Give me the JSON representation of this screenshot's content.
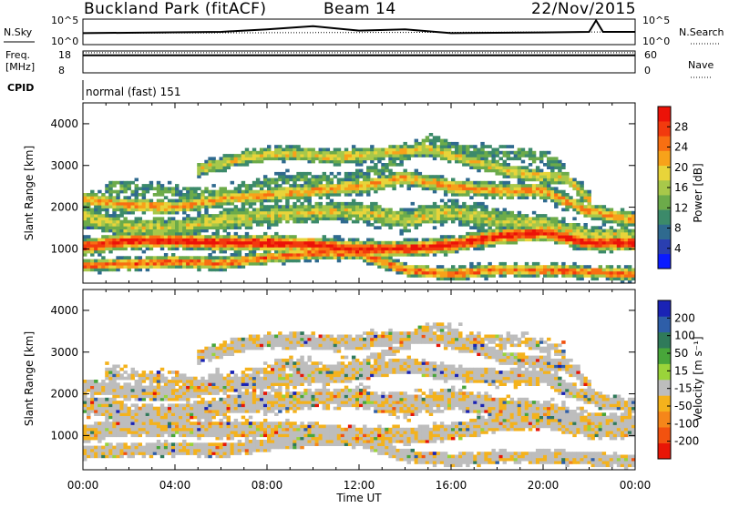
{
  "header": {
    "station": "Buckland Park (fitACF)",
    "beam": "Beam 14",
    "date": "22/Nov/2015"
  },
  "strips": {
    "nsky_label": "N.Sky",
    "nsky_tick_top": "10^5",
    "nsky_tick_bottom": "10^0",
    "nsearch_label": "N.Search",
    "nsearch_tick_top": "10^5",
    "nsearch_tick_bottom": "10^0",
    "freq_label_1": "Freq.",
    "freq_label_2": "[MHz]",
    "freq_tick_top": "18",
    "freq_tick_bottom": "8",
    "nave_label": "Nave",
    "nave_tick_top": "60",
    "nave_tick_bottom": "0",
    "cpid_label": "CPID",
    "cpid_value": "normal (fast) 151"
  },
  "chart_data": [
    {
      "type": "heatmap",
      "name": "power-panel",
      "ylabel": "Slant Range [km]",
      "xlabel": "",
      "x_range_hours": [
        0,
        24
      ],
      "ylim": [
        180,
        4500
      ],
      "yticks": [
        "1000",
        "2000",
        "3000",
        "4000"
      ],
      "colorbar": {
        "label": "Power [dB]",
        "ticks": [
          "4",
          "8",
          "12",
          "16",
          "20",
          "24",
          "28"
        ],
        "colors": [
          "#0a1bff",
          "#2a3fb0",
          "#2f6a8f",
          "#3c8a6a",
          "#6cab4a",
          "#a8c84a",
          "#e8d43a",
          "#f7a21a",
          "#f86f12",
          "#f23a0e",
          "#ec1208"
        ]
      },
      "bands": [
        {
          "level": 0.95,
          "points": [
            [
              0,
              1050
            ],
            [
              2,
              1200
            ],
            [
              4,
              1200
            ],
            [
              6,
              1150
            ],
            [
              8,
              1150
            ],
            [
              10,
              1100
            ],
            [
              12,
              1000
            ],
            [
              14,
              1000
            ],
            [
              16,
              1100
            ],
            [
              18,
              1300
            ],
            [
              20,
              1400
            ],
            [
              22,
              1150
            ],
            [
              24,
              1150
            ]
          ],
          "width": 200
        },
        {
          "level": 0.8,
          "points": [
            [
              0,
              600
            ],
            [
              2,
              650
            ],
            [
              4,
              700
            ],
            [
              6,
              650
            ],
            [
              8,
              800
            ],
            [
              10,
              900
            ],
            [
              12,
              900
            ],
            [
              13,
              700
            ],
            [
              14,
              500
            ],
            [
              16,
              400
            ],
            [
              18,
              500
            ],
            [
              20,
              500
            ],
            [
              22,
              450
            ],
            [
              24,
              400
            ]
          ],
          "width": 160
        },
        {
          "level": 0.7,
          "points": [
            [
              0,
              2200
            ],
            [
              2,
              2050
            ],
            [
              4,
              2000
            ],
            [
              6,
              2200
            ],
            [
              8,
              2300
            ],
            [
              10,
              2400
            ],
            [
              12,
              2500
            ],
            [
              14,
              2700
            ],
            [
              16,
              2500
            ],
            [
              18,
              2400
            ],
            [
              20,
              2400
            ],
            [
              22,
              1900
            ],
            [
              24,
              1700
            ]
          ],
          "width": 200
        },
        {
          "level": 0.55,
          "points": [
            [
              0,
              1800
            ],
            [
              2,
              1500
            ],
            [
              4,
              1500
            ],
            [
              6,
              1700
            ],
            [
              8,
              1800
            ],
            [
              10,
              1900
            ],
            [
              12,
              1900
            ],
            [
              14,
              1700
            ],
            [
              16,
              1900
            ],
            [
              18,
              1700
            ],
            [
              20,
              1600
            ],
            [
              22,
              1300
            ],
            [
              24,
              1300
            ]
          ],
          "width": 300
        },
        {
          "level": 0.6,
          "points": [
            [
              5,
              2900
            ],
            [
              7,
              3200
            ],
            [
              9,
              3300
            ],
            [
              11,
              3200
            ],
            [
              13,
              3300
            ],
            [
              15,
              3400
            ],
            [
              17,
              3100
            ],
            [
              19,
              2800
            ],
            [
              21,
              2700
            ],
            [
              22,
              2200
            ]
          ],
          "width": 200
        },
        {
          "level": 0.35,
          "points": [
            [
              1,
              2500
            ],
            [
              3,
              2400
            ],
            [
              5,
              2300
            ],
            [
              7,
              2400
            ],
            [
              9,
              2700
            ],
            [
              11,
              2600
            ],
            [
              13,
              2900
            ],
            [
              15,
              3600
            ],
            [
              17,
              3300
            ],
            [
              19,
              3300
            ],
            [
              21,
              3000
            ]
          ],
          "width": 260
        }
      ]
    },
    {
      "type": "heatmap",
      "name": "velocity-panel",
      "ylabel": "Slant Range [km]",
      "xlabel": "Time UT",
      "x_range_hours": [
        0,
        24
      ],
      "ylim": [
        180,
        4500
      ],
      "yticks": [
        "1000",
        "2000",
        "3000",
        "4000"
      ],
      "xticks": [
        "00:00",
        "04:00",
        "08:00",
        "12:00",
        "16:00",
        "20:00",
        "00:00"
      ],
      "colorbar": {
        "label": "Velocity [m s⁻¹]",
        "ticks": [
          "200",
          "100",
          "50",
          "15",
          "-15",
          "-50",
          "-100",
          "-200"
        ],
        "colors": [
          "#1a23b5",
          "#2e5ea8",
          "#2f7a5a",
          "#48a63a",
          "#9ad43a",
          "#bdbdbd",
          "#f4b21c",
          "#f5861a",
          "#f2520f",
          "#e81606"
        ]
      },
      "ground_scatter_color": "#bdbdbd",
      "dominant_negative_color": "#f4b21c"
    }
  ],
  "time_series": {
    "nsky": [
      [
        0,
        0.45
      ],
      [
        6,
        0.5
      ],
      [
        8,
        0.6
      ],
      [
        10,
        0.72
      ],
      [
        12,
        0.55
      ],
      [
        14,
        0.6
      ],
      [
        16,
        0.45
      ],
      [
        20,
        0.48
      ],
      [
        22,
        0.5
      ],
      [
        22.3,
        0.95
      ],
      [
        22.6,
        0.5
      ],
      [
        24,
        0.5
      ]
    ],
    "nsearch": [
      [
        0,
        0.45
      ],
      [
        24,
        0.5
      ]
    ],
    "freq": [
      [
        0,
        0.8
      ],
      [
        24,
        0.8
      ]
    ],
    "nave": [
      [
        0,
        0.92
      ],
      [
        24,
        0.92
      ]
    ]
  }
}
